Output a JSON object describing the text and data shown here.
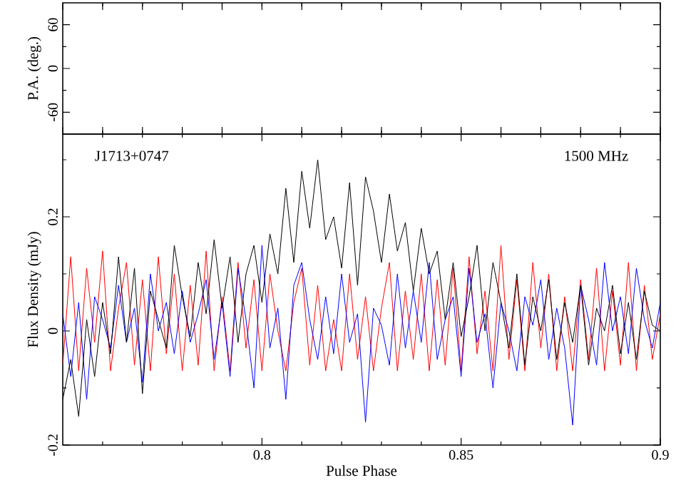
{
  "chart_data": [
    {
      "type": "line",
      "xlim": [
        0.75,
        0.9
      ],
      "xticks": [
        {
          "value": 0.76,
          "label": null
        },
        {
          "value": 0.77,
          "label": null
        },
        {
          "value": 0.78,
          "label": null
        },
        {
          "value": 0.79,
          "label": null
        },
        {
          "value": 0.8,
          "label": null
        },
        {
          "value": 0.81,
          "label": null
        },
        {
          "value": 0.82,
          "label": null
        },
        {
          "value": 0.83,
          "label": null
        },
        {
          "value": 0.84,
          "label": null
        },
        {
          "value": 0.85,
          "label": null
        },
        {
          "value": 0.86,
          "label": null
        },
        {
          "value": 0.87,
          "label": null
        },
        {
          "value": 0.88,
          "label": null
        },
        {
          "value": 0.89,
          "label": null
        }
      ],
      "ylim": [
        -90,
        90
      ],
      "yticks": [
        -60,
        {
          "value": -30,
          "label": null
        },
        0,
        {
          "value": 30,
          "label": null
        },
        60
      ],
      "ylabel": "P.A. (deg.)",
      "tick_labels": "y"
    },
    {
      "type": "line",
      "x": [
        0.75,
        0.752,
        0.754,
        0.756,
        0.758,
        0.76,
        0.762,
        0.764,
        0.766,
        0.768,
        0.77,
        0.772,
        0.774,
        0.776,
        0.778,
        0.78,
        0.782,
        0.784,
        0.786,
        0.788,
        0.79,
        0.792,
        0.794,
        0.796,
        0.798,
        0.8,
        0.802,
        0.804,
        0.806,
        0.808,
        0.81,
        0.812,
        0.814,
        0.816,
        0.818,
        0.82,
        0.822,
        0.824,
        0.826,
        0.828,
        0.83,
        0.832,
        0.834,
        0.836,
        0.838,
        0.84,
        0.842,
        0.844,
        0.846,
        0.848,
        0.85,
        0.852,
        0.854,
        0.856,
        0.858,
        0.86,
        0.862,
        0.864,
        0.866,
        0.868,
        0.87,
        0.872,
        0.874,
        0.876,
        0.878,
        0.88,
        0.882,
        0.884,
        0.886,
        0.888,
        0.89,
        0.892,
        0.894,
        0.896,
        0.898,
        0.9
      ],
      "series": [
        {
          "color": "#ff0000",
          "values": [
            -0.06,
            0.13,
            -0.07,
            0.11,
            -0.02,
            0.14,
            -0.07,
            0.04,
            0.12,
            -0.06,
            0.09,
            -0.07,
            0.13,
            -0.04,
            0.1,
            -0.07,
            0.08,
            -0.06,
            0.14,
            -0.07,
            0.06,
            -0.07,
            0.12,
            -0.03,
            0.09,
            -0.07,
            0.1,
            0.0,
            -0.07,
            0.05,
            0.11,
            -0.06,
            0.08,
            -0.07,
            0.02,
            -0.07,
            0.1,
            -0.05,
            0.06,
            -0.07,
            0.04,
            0.12,
            -0.07,
            0.07,
            -0.05,
            0.1,
            -0.07,
            0.09,
            -0.06,
            0.11,
            -0.07,
            0.13,
            -0.04,
            0.07,
            -0.07,
            0.15,
            -0.05,
            0.09,
            -0.07,
            0.12,
            -0.03,
            0.1,
            -0.07,
            0.06,
            -0.07,
            0.09,
            -0.05,
            0.11,
            -0.07,
            0.07,
            -0.06,
            0.12,
            -0.07,
            0.08,
            -0.05,
            0.03
          ]
        },
        {
          "color": "#0000ff",
          "values": [
            0.03,
            -0.08,
            0.05,
            -0.12,
            0.06,
            0.02,
            -0.03,
            0.08,
            -0.02,
            0.04,
            -0.09,
            0.1,
            0.0,
            0.05,
            -0.04,
            0.07,
            -0.02,
            0.03,
            0.09,
            -0.05,
            0.05,
            -0.08,
            0.11,
            0.02,
            -0.1,
            0.15,
            -0.03,
            0.04,
            -0.12,
            0.08,
            0.12,
            0.02,
            -0.05,
            0.06,
            -0.04,
            0.1,
            -0.02,
            0.03,
            -0.16,
            0.04,
            0.01,
            -0.06,
            0.1,
            -0.03,
            0.07,
            -0.02,
            0.12,
            -0.05,
            0.02,
            0.06,
            -0.08,
            0.11,
            -0.02,
            0.03,
            -0.1,
            0.05,
            0.0,
            -0.07,
            0.06,
            0.01,
            0.09,
            -0.05,
            0.04,
            -0.03,
            -0.165,
            0.08,
            0.02,
            -0.06,
            0.12,
            0.0,
            0.06,
            -0.04,
            0.11,
            0.02,
            -0.03,
            0.05
          ]
        },
        {
          "color": "#000000",
          "values": [
            -0.12,
            -0.05,
            -0.15,
            0.02,
            -0.08,
            0.05,
            -0.04,
            0.13,
            -0.02,
            0.11,
            -0.11,
            0.07,
            0.02,
            -0.03,
            0.15,
            0.06,
            -0.01,
            0.12,
            0.03,
            0.16,
            0.04,
            0.13,
            -0.02,
            0.1,
            0.15,
            0.05,
            0.17,
            0.1,
            0.25,
            0.12,
            0.28,
            0.18,
            0.3,
            0.16,
            0.2,
            0.11,
            0.26,
            0.08,
            0.27,
            0.21,
            0.12,
            0.24,
            0.14,
            0.19,
            0.07,
            0.18,
            0.1,
            0.14,
            0.02,
            0.12,
            -0.01,
            0.06,
            0.15,
            0.0,
            0.12,
            0.05,
            -0.03,
            0.1,
            -0.06,
            0.06,
            0.0,
            0.09,
            -0.05,
            0.05,
            -0.02,
            0.08,
            -0.06,
            0.04,
            0.0,
            0.08,
            -0.04,
            0.05,
            -0.05,
            0.07,
            0.01,
            0.0
          ]
        }
      ],
      "xlim": [
        0.75,
        0.9
      ],
      "xticks": [
        {
          "value": 0.76,
          "label": null
        },
        {
          "value": 0.77,
          "label": null
        },
        {
          "value": 0.78,
          "label": null
        },
        {
          "value": 0.79,
          "label": null
        },
        0.8,
        {
          "value": 0.81,
          "label": null
        },
        {
          "value": 0.82,
          "label": null
        },
        {
          "value": 0.83,
          "label": null
        },
        {
          "value": 0.84,
          "label": null
        },
        0.85,
        {
          "value": 0.86,
          "label": null
        },
        {
          "value": 0.87,
          "label": null
        },
        {
          "value": 0.88,
          "label": null
        },
        {
          "value": 0.89,
          "label": null
        },
        0.9
      ],
      "ylim": [
        -0.2,
        0.345
      ],
      "yticks": [
        -0.2,
        {
          "value": -0.1,
          "label": null
        },
        0,
        {
          "value": 0.1,
          "label": null
        },
        0.2,
        {
          "value": 0.3,
          "label": null
        }
      ],
      "xlabel": "Pulse Phase",
      "ylabel": "Flux Density (mJy)",
      "annotations": [
        "J1713+0747",
        "1500 MHz"
      ]
    }
  ]
}
